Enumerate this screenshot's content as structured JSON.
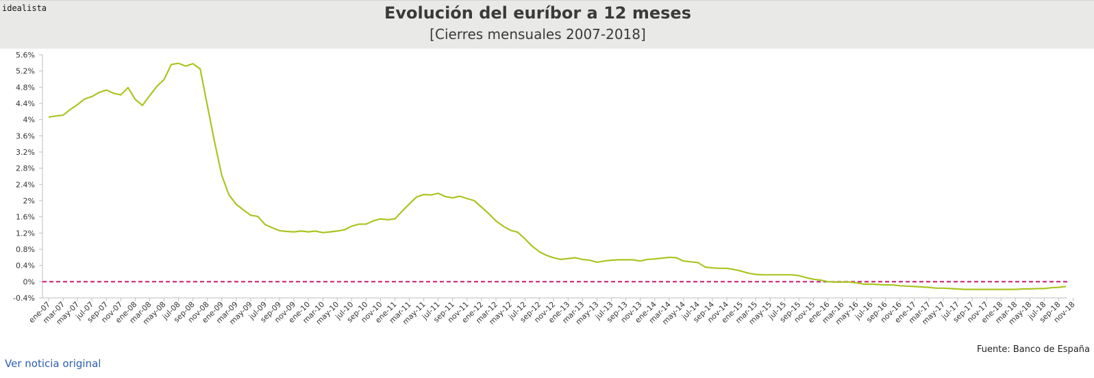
{
  "brand": "idealista",
  "link_label": "Ver noticia original",
  "chart_data": {
    "type": "line",
    "title": "Evolución del euríbor a 12 meses",
    "subtitle": "[Cierres mensuales 2007-2018]",
    "source": "Fuente: Banco de España",
    "xlabel": "",
    "ylabel": "",
    "ylim": [
      -0.4,
      5.6
    ],
    "y_ticks": [
      -0.4,
      0,
      0.4,
      0.8,
      1.2,
      1.6,
      2,
      2.4,
      2.8,
      3.2,
      3.6,
      4,
      4.4,
      4.8,
      5.2,
      5.6
    ],
    "y_tick_labels": [
      "-0.4%",
      "0%",
      "0.4%",
      "0.8%",
      "1.2%",
      "1.6%",
      "2%",
      "2.4%",
      "2.8%",
      "3.2%",
      "3.6%",
      "4%",
      "4.4%",
      "4.8%",
      "5.2%",
      "5.6%"
    ],
    "x_tick_labels": [
      "ene-07",
      "mar-07",
      "may-07",
      "jul-07",
      "sep-07",
      "nov-07",
      "ene-08",
      "mar-08",
      "may-08",
      "jul-08",
      "sep-08",
      "nov-08",
      "ene-09",
      "mar-09",
      "may-09",
      "jul-09",
      "sep-09",
      "nov-09",
      "ene-10",
      "mar-10",
      "may-10",
      "jul-10",
      "sep-10",
      "nov-10",
      "ene-11",
      "mar-11",
      "may-11",
      "jul-11",
      "sep-11",
      "nov-11",
      "ene-12",
      "mar-12",
      "may-12",
      "jul-12",
      "sep-12",
      "nov-12",
      "ene-13",
      "mar-13",
      "may-13",
      "jul-13",
      "sep-13",
      "nov-13",
      "ene-14",
      "mar-14",
      "may-14",
      "jul-14",
      "sep-14",
      "nov-14",
      "ene-15",
      "mar-15",
      "may-15",
      "jul-15",
      "sep-15",
      "nov-15",
      "ene-16",
      "mar-16",
      "may-16",
      "jul-16",
      "sep-16",
      "nov-16",
      "ene-17",
      "mar-17",
      "may-17",
      "jul-17",
      "sep-17",
      "nov-17",
      "ene-18",
      "mar-18",
      "may-18",
      "jul-18",
      "sep-18",
      "nov-18"
    ],
    "grid": false,
    "series_color": "#a8c520",
    "reference_line": {
      "y": 0,
      "color": "#c2186b",
      "style": "dashed"
    },
    "series": [
      {
        "values": [
          4.06,
          4.09,
          4.11,
          4.25,
          4.37,
          4.51,
          4.57,
          4.67,
          4.73,
          4.65,
          4.61,
          4.79,
          4.5,
          4.35,
          4.59,
          4.82,
          4.99,
          5.36,
          5.39,
          5.32,
          5.38,
          5.25,
          4.35,
          3.45,
          2.62,
          2.14,
          1.91,
          1.77,
          1.64,
          1.61,
          1.41,
          1.33,
          1.26,
          1.24,
          1.23,
          1.25,
          1.23,
          1.25,
          1.21,
          1.23,
          1.25,
          1.28,
          1.37,
          1.42,
          1.42,
          1.5,
          1.55,
          1.53,
          1.55,
          1.74,
          1.92,
          2.09,
          2.15,
          2.14,
          2.18,
          2.1,
          2.07,
          2.11,
          2.05,
          2.0,
          1.84,
          1.68,
          1.5,
          1.37,
          1.27,
          1.22,
          1.06,
          0.88,
          0.74,
          0.65,
          0.59,
          0.55,
          0.57,
          0.59,
          0.55,
          0.53,
          0.48,
          0.51,
          0.53,
          0.54,
          0.54,
          0.54,
          0.51,
          0.55,
          0.56,
          0.58,
          0.6,
          0.59,
          0.51,
          0.49,
          0.47,
          0.36,
          0.34,
          0.33,
          0.33,
          0.3,
          0.26,
          0.21,
          0.18,
          0.17,
          0.17,
          0.17,
          0.17,
          0.17,
          0.15,
          0.1,
          0.06,
          0.04,
          0.0,
          -0.01,
          -0.01,
          -0.01,
          -0.03,
          -0.06,
          -0.06,
          -0.07,
          -0.08,
          -0.08,
          -0.1,
          -0.11,
          -0.12,
          -0.13,
          -0.14,
          -0.16,
          -0.16,
          -0.17,
          -0.18,
          -0.19,
          -0.19,
          -0.19,
          -0.19,
          -0.19,
          -0.19,
          -0.19,
          -0.19,
          -0.18,
          -0.18,
          -0.17,
          -0.17,
          -0.15,
          -0.14,
          -0.12
        ]
      }
    ]
  }
}
